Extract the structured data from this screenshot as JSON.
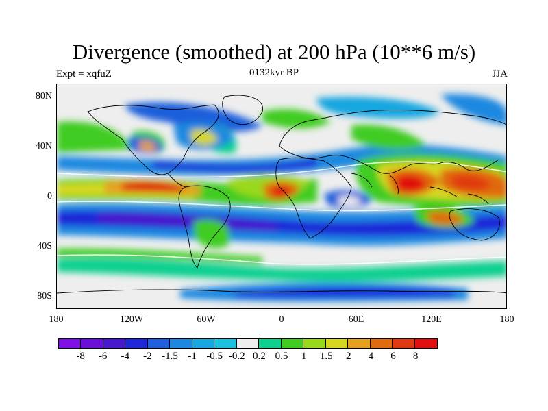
{
  "title": "Divergence (smoothed) at 200 hPa (10**6 m/s)",
  "subtitle_left": "Expt = xqfuZ",
  "subtitle_center": "0132kyr BP",
  "subtitle_right": "JJA",
  "lat_labels": [
    "80N",
    "40N",
    "0",
    "40S",
    "80S"
  ],
  "lon_labels": [
    "180",
    "120W",
    "60W",
    "0",
    "60E",
    "120E",
    "180"
  ],
  "colorbar": {
    "colors": [
      "#7f10e6",
      "#6a10d8",
      "#4a18cc",
      "#1e28d8",
      "#1f5fdb",
      "#1c88e0",
      "#18a6e0",
      "#1cc0e0",
      "#eeeeee",
      "#10d090",
      "#40cc20",
      "#9ad81c",
      "#d6d820",
      "#e6a020",
      "#e06a10",
      "#e03a10",
      "#e01010"
    ],
    "labels": [
      "-8",
      "-6",
      "-4",
      "-2",
      "-1.5",
      "-1",
      "-0.5",
      "-0.2",
      "0.2",
      "0.5",
      "1",
      "1.5",
      "2",
      "4",
      "6",
      "8"
    ]
  }
}
